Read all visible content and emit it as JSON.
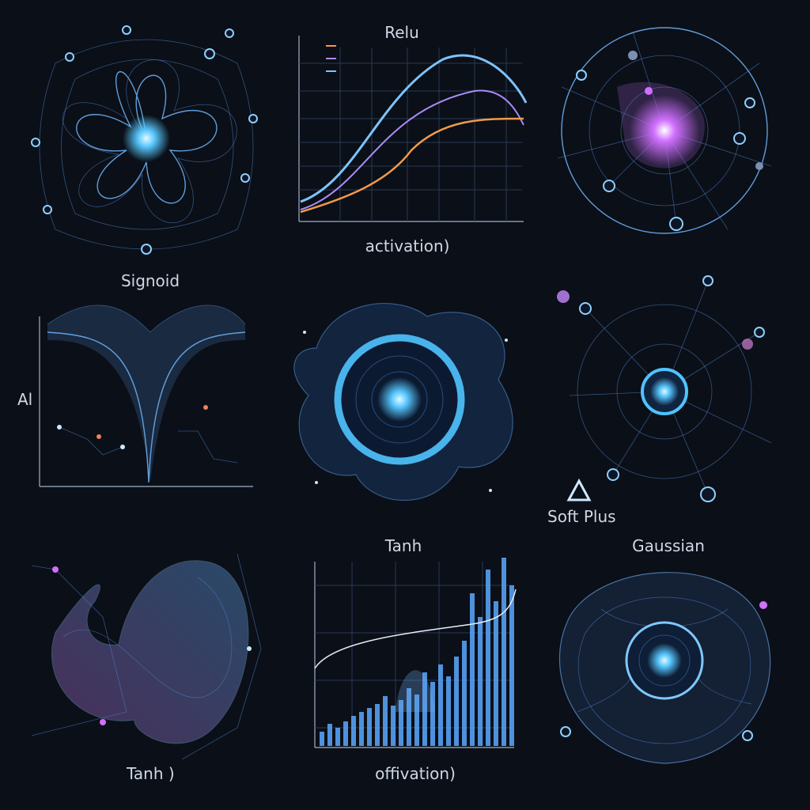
{
  "panels": {
    "relu": {
      "title": "Relu",
      "x_label": "activation)"
    },
    "sigmoid": {
      "title": "Signoid",
      "y_label": "Al"
    },
    "softplus": {
      "title": "Soft Plus"
    },
    "tanh_shape": {
      "label": "Tanh )"
    },
    "tanh_chart": {
      "title": "Tanh",
      "x_label": "offivation)"
    },
    "gaussian": {
      "title": "Gaussian"
    }
  }
}
